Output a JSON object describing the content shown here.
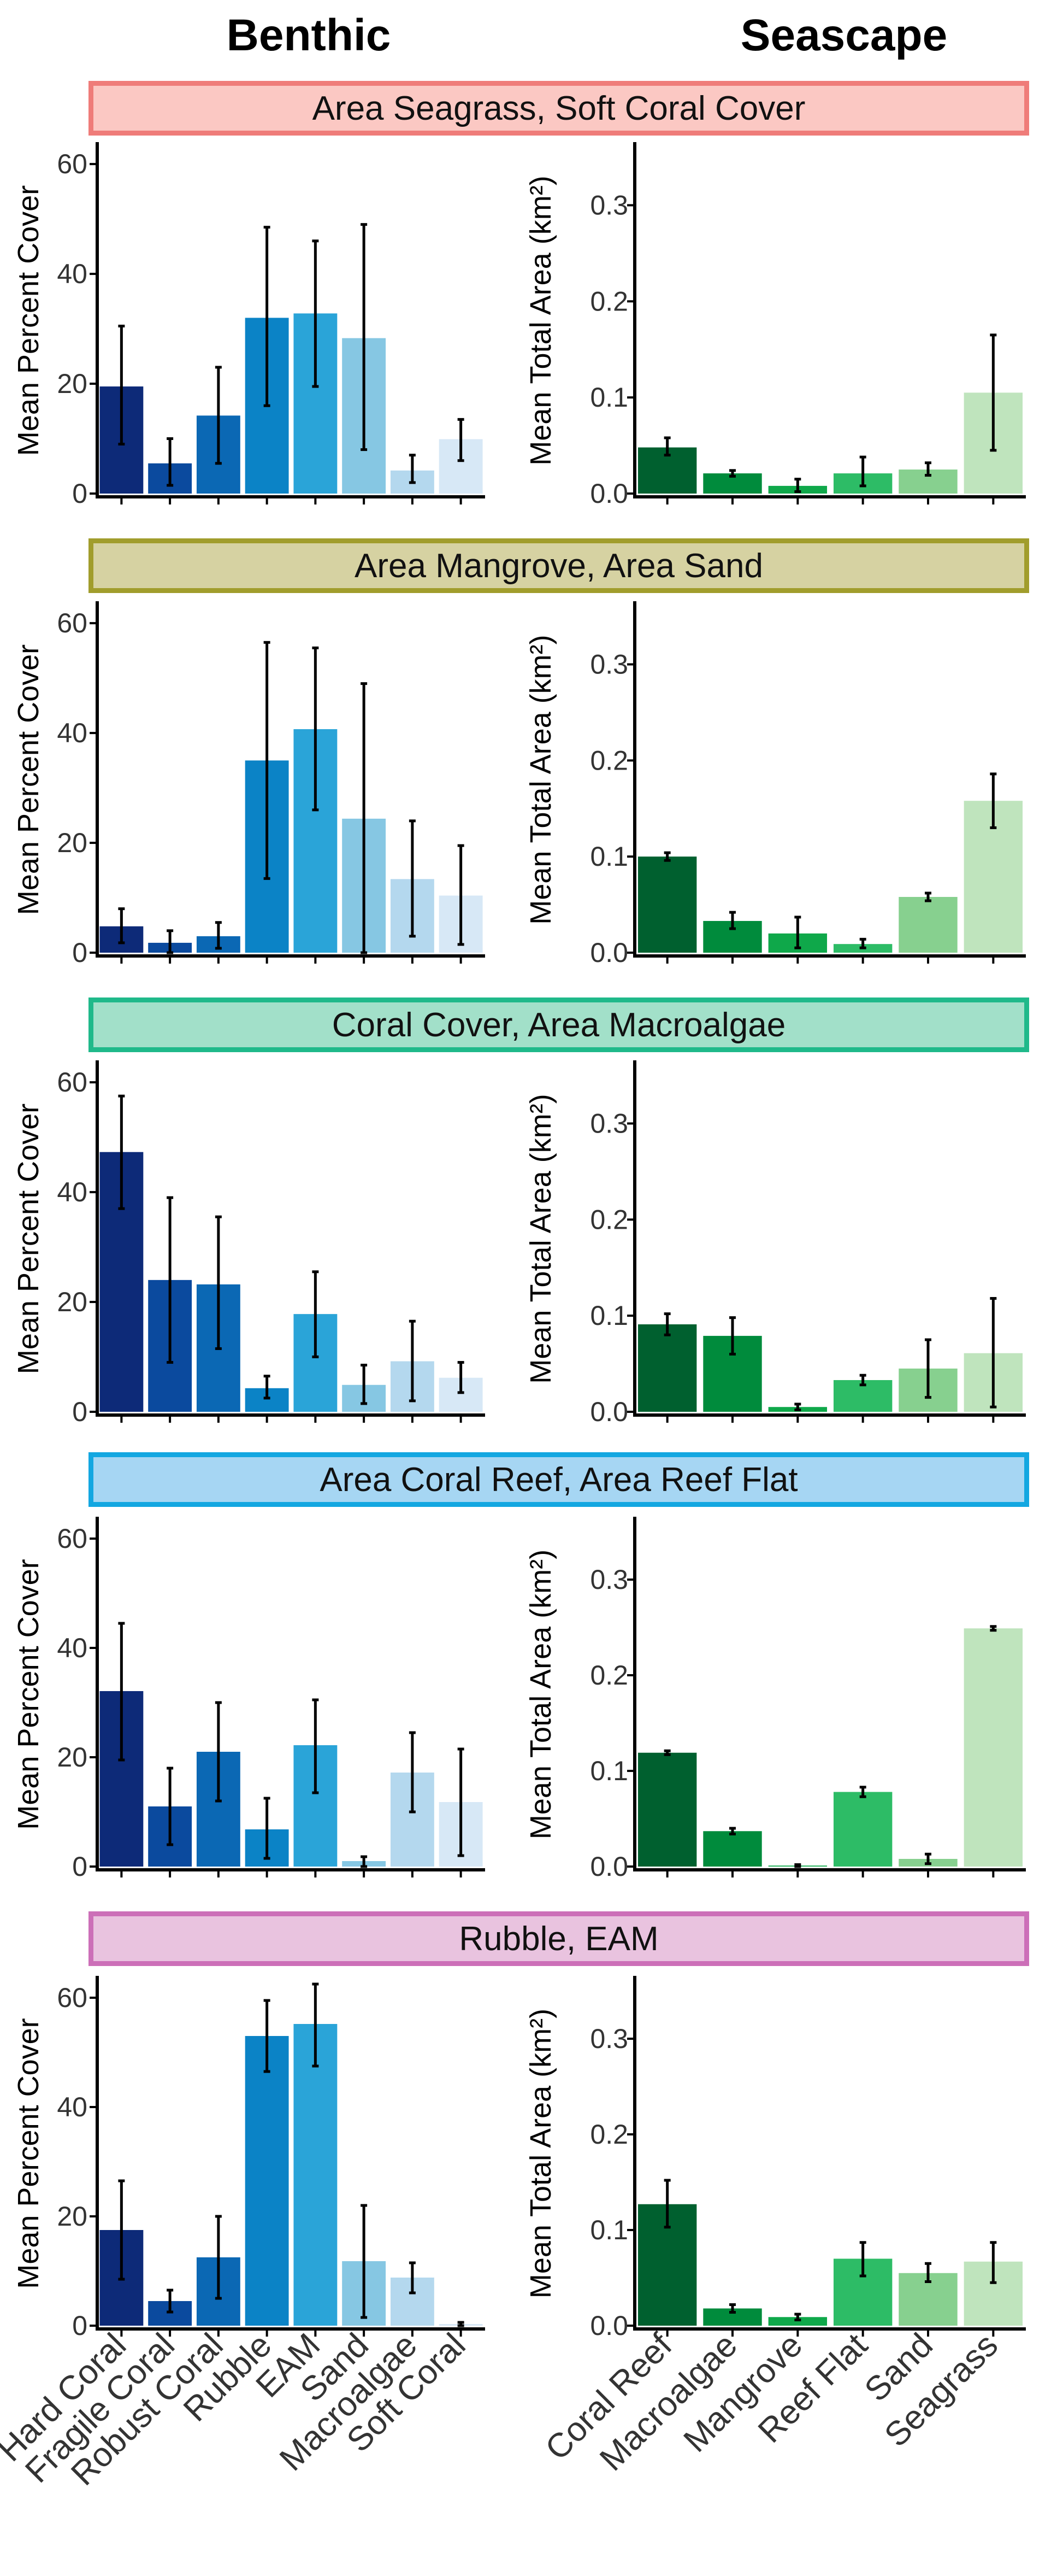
{
  "headers": {
    "benthic": "Benthic",
    "seascape": "Seascape"
  },
  "colors": {
    "benthic": [
      "#0d2a78",
      "#0b4a9e",
      "#0b68b4",
      "#0b83c6",
      "#2aa4d8",
      "#86c7e3",
      "#b4d8ee",
      "#d7e8f6"
    ],
    "seascape": [
      "#00602f",
      "#008b3c",
      "#0fa84a",
      "#2dbc66",
      "#87d08f",
      "#bfe4bd"
    ]
  },
  "chart_data": [
    {
      "type": "bar",
      "panel": "benthic",
      "group_title": "Area Seagrass, Soft Coral Cover",
      "title_colors": {
        "border": "#ef7c79",
        "fill": "#fbc8c3"
      },
      "ylabel": "Mean Percent Cover",
      "ylim": [
        0,
        63
      ],
      "yticks": [
        0,
        20,
        40,
        60
      ],
      "ytick_labels": [
        "0",
        "20",
        "40",
        "60"
      ],
      "categories": [
        "Hard Coral",
        "Fragile Coral",
        "Robust Coral",
        "Rubble",
        "EAM",
        "Sand",
        "Macroalgae",
        "Soft Coral"
      ],
      "values": [
        19.5,
        5.5,
        14.2,
        32,
        32.8,
        28.3,
        4.2,
        9.9
      ],
      "err_low": [
        9,
        1.5,
        5.5,
        16,
        19.5,
        8,
        2,
        6
      ],
      "err_high": [
        30.5,
        10,
        23,
        48.5,
        46,
        49,
        7,
        13.5
      ]
    },
    {
      "type": "bar",
      "panel": "seascape",
      "group_title": "Area Seagrass, Soft Coral Cover",
      "ylabel": "Mean Total Area (km²)",
      "ylim": [
        0,
        0.36
      ],
      "yticks": [
        0,
        0.1,
        0.2,
        0.3
      ],
      "ytick_labels": [
        "0.0",
        "0.1",
        "0.2",
        "0.3"
      ],
      "categories": [
        "Coral Reef",
        "Macroalgae",
        "Mangrove",
        "Reef Flat",
        "Sand",
        "Seagrass"
      ],
      "values": [
        0.048,
        0.021,
        0.008,
        0.021,
        0.025,
        0.105
      ],
      "err_low": [
        0.04,
        0.018,
        0.002,
        0.008,
        0.019,
        0.045
      ],
      "err_high": [
        0.058,
        0.024,
        0.015,
        0.038,
        0.032,
        0.165
      ]
    },
    {
      "type": "bar",
      "panel": "benthic",
      "group_title": "Area Mangrove, Area Sand",
      "title_colors": {
        "border": "#a19d2c",
        "fill": "#d6d2a2"
      },
      "ylabel": "Mean Percent Cover",
      "ylim": [
        0,
        63
      ],
      "yticks": [
        0,
        20,
        40,
        60
      ],
      "ytick_labels": [
        "0",
        "20",
        "40",
        "60"
      ],
      "categories": [
        "Hard Coral",
        "Fragile Coral",
        "Robust Coral",
        "Rubble",
        "EAM",
        "Sand",
        "Macroalgae",
        "Soft Coral"
      ],
      "values": [
        4.8,
        1.8,
        3,
        35,
        40.7,
        24.4,
        13.4,
        10.4
      ],
      "err_low": [
        1.8,
        0,
        0.8,
        13.5,
        26,
        0,
        3,
        1.5
      ],
      "err_high": [
        8,
        4,
        5.5,
        56.5,
        55.5,
        49,
        24,
        19.5
      ]
    },
    {
      "type": "bar",
      "panel": "seascape",
      "group_title": "Area Mangrove, Area Sand",
      "ylabel": "Mean Total Area (km²)",
      "ylim": [
        0,
        0.36
      ],
      "yticks": [
        0,
        0.1,
        0.2,
        0.3
      ],
      "ytick_labels": [
        "0.0",
        "0.1",
        "0.2",
        "0.3"
      ],
      "categories": [
        "Coral Reef",
        "Macroalgae",
        "Mangrove",
        "Reef Flat",
        "Sand",
        "Seagrass"
      ],
      "values": [
        0.1,
        0.033,
        0.02,
        0.009,
        0.058,
        0.158
      ],
      "err_low": [
        0.096,
        0.025,
        0.005,
        0.005,
        0.054,
        0.13
      ],
      "err_high": [
        0.104,
        0.042,
        0.037,
        0.014,
        0.062,
        0.186
      ]
    },
    {
      "type": "bar",
      "panel": "benthic",
      "group_title": "Coral Cover, Area Macroalgae",
      "title_colors": {
        "border": "#1fb98a",
        "fill": "#a2e0c9"
      },
      "ylabel": "Mean Percent Cover",
      "ylim": [
        0,
        63
      ],
      "yticks": [
        0,
        20,
        40,
        60
      ],
      "ytick_labels": [
        "0",
        "20",
        "40",
        "60"
      ],
      "categories": [
        "Hard Coral",
        "Fragile Coral",
        "Robust Coral",
        "Rubble",
        "EAM",
        "Sand",
        "Macroalgae",
        "Soft Coral"
      ],
      "values": [
        47.3,
        24,
        23.2,
        4.3,
        17.8,
        4.9,
        9.2,
        6.2
      ],
      "err_low": [
        37,
        9,
        11.5,
        2.5,
        10,
        1.5,
        2,
        3.5
      ],
      "err_high": [
        57.5,
        39,
        35.5,
        6.5,
        25.5,
        8.5,
        16.5,
        9
      ]
    },
    {
      "type": "bar",
      "panel": "seascape",
      "group_title": "Coral Cover, Area Macroalgae",
      "ylabel": "Mean Total Area (km²)",
      "ylim": [
        0,
        0.36
      ],
      "yticks": [
        0,
        0.1,
        0.2,
        0.3
      ],
      "ytick_labels": [
        "0.0",
        "0.1",
        "0.2",
        "0.3"
      ],
      "categories": [
        "Coral Reef",
        "Macroalgae",
        "Mangrove",
        "Reef Flat",
        "Sand",
        "Seagrass"
      ],
      "values": [
        0.091,
        0.079,
        0.005,
        0.033,
        0.045,
        0.061
      ],
      "err_low": [
        0.08,
        0.06,
        0.002,
        0.028,
        0.015,
        0.005
      ],
      "err_high": [
        0.102,
        0.098,
        0.008,
        0.038,
        0.075,
        0.118
      ]
    },
    {
      "type": "bar",
      "panel": "benthic",
      "group_title": "Area Coral Reef, Area Reef Flat",
      "title_colors": {
        "border": "#13a7e1",
        "fill": "#a6d6f3"
      },
      "ylabel": "Mean Percent Cover",
      "ylim": [
        0,
        63
      ],
      "yticks": [
        0,
        20,
        40,
        60
      ],
      "ytick_labels": [
        "0",
        "20",
        "40",
        "60"
      ],
      "categories": [
        "Hard Coral",
        "Fragile Coral",
        "Robust Coral",
        "Rubble",
        "EAM",
        "Sand",
        "Macroalgae",
        "Soft Coral"
      ],
      "values": [
        32.1,
        11,
        21,
        6.8,
        22.2,
        1,
        17.2,
        11.8
      ],
      "err_low": [
        19.5,
        4,
        12,
        1.5,
        13.5,
        0,
        10,
        2
      ],
      "err_high": [
        44.5,
        18,
        30,
        12.5,
        30.5,
        1.8,
        24.5,
        21.5
      ]
    },
    {
      "type": "bar",
      "panel": "seascape",
      "group_title": "Area Coral Reef, Area Reef Flat",
      "ylabel": "Mean Total Area (km²)",
      "ylim": [
        0,
        0.36
      ],
      "yticks": [
        0,
        0.1,
        0.2,
        0.3
      ],
      "ytick_labels": [
        "0.0",
        "0.1",
        "0.2",
        "0.3"
      ],
      "categories": [
        "Coral Reef",
        "Macroalgae",
        "Mangrove",
        "Reef Flat",
        "Sand",
        "Seagrass"
      ],
      "values": [
        0.119,
        0.037,
        0.001,
        0.078,
        0.008,
        0.249
      ],
      "err_low": [
        0.117,
        0.034,
        0,
        0.073,
        0.003,
        0.247
      ],
      "err_high": [
        0.121,
        0.04,
        0.002,
        0.083,
        0.013,
        0.251
      ]
    },
    {
      "type": "bar",
      "panel": "benthic",
      "group_title": "Rubble, EAM",
      "title_colors": {
        "border": "#cc6fb8",
        "fill": "#e9c3df"
      },
      "ylabel": "Mean Percent Cover",
      "ylim": [
        0,
        63
      ],
      "yticks": [
        0,
        20,
        40,
        60
      ],
      "ytick_labels": [
        "0",
        "20",
        "40",
        "60"
      ],
      "categories": [
        "Hard Coral",
        "Fragile Coral",
        "Robust Coral",
        "Rubble",
        "EAM",
        "Sand",
        "Macroalgae",
        "Soft Coral"
      ],
      "values": [
        17.5,
        4.5,
        12.5,
        53,
        55.2,
        11.8,
        8.8,
        0.3
      ],
      "err_low": [
        8.5,
        2.5,
        5,
        46.5,
        47.5,
        1.5,
        6,
        0
      ],
      "err_high": [
        26.5,
        6.5,
        20,
        59.5,
        62.5,
        22,
        11.5,
        0.6
      ]
    },
    {
      "type": "bar",
      "panel": "seascape",
      "group_title": "Rubble, EAM",
      "ylabel": "Mean Total Area (km²)",
      "ylim": [
        0,
        0.36
      ],
      "yticks": [
        0,
        0.1,
        0.2,
        0.3
      ],
      "ytick_labels": [
        "0.0",
        "0.1",
        "0.2",
        "0.3"
      ],
      "categories": [
        "Coral Reef",
        "Macroalgae",
        "Mangrove",
        "Reef Flat",
        "Sand",
        "Seagrass"
      ],
      "values": [
        0.127,
        0.018,
        0.009,
        0.07,
        0.055,
        0.067
      ],
      "err_low": [
        0.103,
        0.014,
        0.006,
        0.052,
        0.046,
        0.045
      ],
      "err_high": [
        0.152,
        0.022,
        0.012,
        0.087,
        0.065,
        0.087
      ]
    }
  ]
}
